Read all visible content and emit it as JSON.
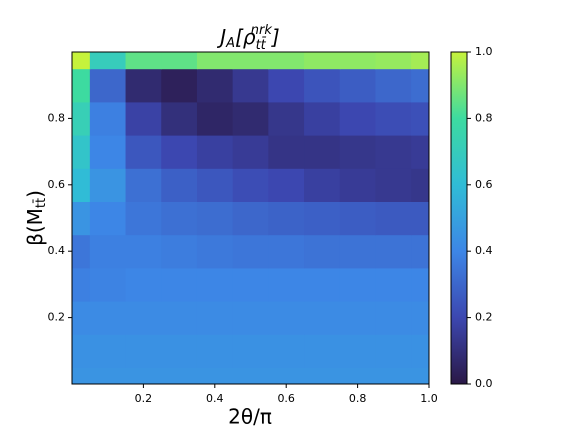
{
  "chart_data": {
    "type": "contour",
    "title": [
      "J",
      "A",
      "[ρ",
      "tt̄",
      "nrk",
      "]"
    ],
    "xlabel": "2θ/π",
    "ylabel": [
      "β(M",
      "tt̄",
      ")"
    ],
    "x": [
      0,
      0.1,
      0.2,
      0.3,
      0.4,
      0.5,
      0.6,
      0.7,
      0.8,
      0.9,
      1.0
    ],
    "y": [
      0,
      0.1,
      0.2,
      0.3,
      0.4,
      0.5,
      0.6,
      0.7,
      0.8,
      0.9,
      1.0
    ],
    "z": [
      [
        0.45,
        0.45,
        0.45,
        0.45,
        0.45,
        0.45,
        0.45,
        0.45,
        0.45,
        0.45,
        0.45
      ],
      [
        0.44,
        0.44,
        0.44,
        0.44,
        0.44,
        0.44,
        0.44,
        0.44,
        0.44,
        0.44,
        0.44
      ],
      [
        0.42,
        0.42,
        0.42,
        0.42,
        0.42,
        0.42,
        0.42,
        0.42,
        0.42,
        0.42,
        0.42
      ],
      [
        0.38,
        0.39,
        0.4,
        0.4,
        0.4,
        0.4,
        0.4,
        0.4,
        0.4,
        0.4,
        0.4
      ],
      [
        0.35,
        0.38,
        0.38,
        0.37,
        0.36,
        0.35,
        0.35,
        0.34,
        0.34,
        0.34,
        0.34
      ],
      [
        0.45,
        0.4,
        0.35,
        0.33,
        0.32,
        0.3,
        0.29,
        0.28,
        0.27,
        0.26,
        0.26
      ],
      [
        0.6,
        0.45,
        0.33,
        0.28,
        0.25,
        0.22,
        0.2,
        0.17,
        0.15,
        0.14,
        0.13
      ],
      [
        0.65,
        0.4,
        0.25,
        0.2,
        0.17,
        0.15,
        0.12,
        0.12,
        0.13,
        0.14,
        0.15
      ],
      [
        0.72,
        0.38,
        0.18,
        0.1,
        0.06,
        0.08,
        0.13,
        0.17,
        0.2,
        0.22,
        0.23
      ],
      [
        0.8,
        0.3,
        0.08,
        0.04,
        0.08,
        0.14,
        0.2,
        0.24,
        0.27,
        0.3,
        0.32
      ],
      [
        1.0,
        0.7,
        0.85,
        0.85,
        0.9,
        0.9,
        0.9,
        0.92,
        0.92,
        0.93,
        0.95
      ]
    ],
    "xlim": [
      0,
      1
    ],
    "ylim": [
      0,
      1
    ],
    "xticks": [
      0.2,
      0.4,
      0.6,
      0.8,
      {
        "value": 1.0,
        "label": "1.0"
      }
    ],
    "yticks": [
      0.2,
      0.4,
      0.6,
      0.8
    ],
    "clim": [
      0,
      1
    ],
    "cticks": [
      {
        "value": 0,
        "label": "0.0"
      },
      0.2,
      0.4,
      0.6,
      0.8,
      {
        "value": 1.0,
        "label": "1.0"
      }
    ],
    "colormap": [
      "#2a1846",
      "#3c47b0",
      "#3d86e6",
      "#30bcd6",
      "#3ddba0",
      "#c6f23c"
    ]
  }
}
